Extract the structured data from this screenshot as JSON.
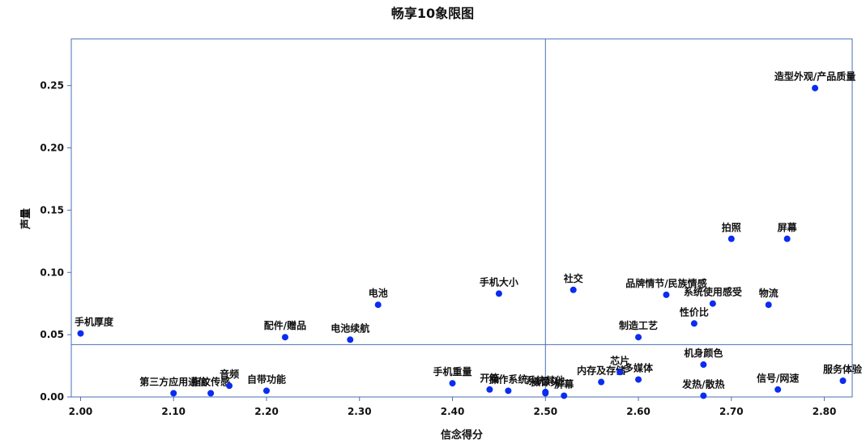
{
  "chart_data": {
    "type": "scatter",
    "title": "畅享10象限图",
    "xlabel": "信念得分",
    "ylabel": "声量",
    "xlim": [
      1.99,
      2.83
    ],
    "ylim": [
      0.0,
      0.2875
    ],
    "xticks": [
      2.0,
      2.1,
      2.2,
      2.3,
      2.4,
      2.5,
      2.6,
      2.7,
      2.8
    ],
    "xtick_labels": [
      "2.00",
      "2.10",
      "2.20",
      "2.30",
      "2.40",
      "2.50",
      "2.60",
      "2.70",
      "2.80"
    ],
    "yticks": [
      0.0,
      0.05,
      0.1,
      0.15,
      0.2,
      0.25
    ],
    "ytick_labels": [
      "0.00",
      "0.05",
      "0.10",
      "0.15",
      "0.20",
      "0.25"
    ],
    "reference_lines": {
      "x": 2.5,
      "y": 0.042
    },
    "grid": false,
    "point_color": "#0a2cf0",
    "line_color": "#4a6fb5",
    "points": [
      {
        "label": "手机厚度",
        "x": 2.0,
        "y": 0.051
      },
      {
        "label": "第三方应用通信",
        "x": 2.1,
        "y": 0.003
      },
      {
        "label": "指纹传感",
        "x": 2.14,
        "y": 0.003
      },
      {
        "label": "音频",
        "x": 2.16,
        "y": 0.009
      },
      {
        "label": "自带功能",
        "x": 2.2,
        "y": 0.005
      },
      {
        "label": "配件/赠品",
        "x": 2.22,
        "y": 0.048
      },
      {
        "label": "电池续航",
        "x": 2.29,
        "y": 0.046
      },
      {
        "label": "电池",
        "x": 2.32,
        "y": 0.074
      },
      {
        "label": "手机重量",
        "x": 2.4,
        "y": 0.011
      },
      {
        "label": "开箱",
        "x": 2.44,
        "y": 0.006
      },
      {
        "label": "操作系统",
        "x": 2.46,
        "y": 0.005
      },
      {
        "label": "手机大小",
        "x": 2.45,
        "y": 0.083
      },
      {
        "label": "系统其他",
        "x": 2.5,
        "y": 0.004
      },
      {
        "label": "摄像头",
        "x": 2.5,
        "y": 0.003
      },
      {
        "label": "屏幕",
        "x": 2.52,
        "y": 0.001
      },
      {
        "label": "社交",
        "x": 2.53,
        "y": 0.086
      },
      {
        "label": "内存及存储",
        "x": 2.56,
        "y": 0.012
      },
      {
        "label": "芯片",
        "x": 2.58,
        "y": 0.02
      },
      {
        "label": "多媒体",
        "x": 2.6,
        "y": 0.014
      },
      {
        "label": "制造工艺",
        "x": 2.6,
        "y": 0.048
      },
      {
        "label": "品牌情节/民族情感",
        "x": 2.63,
        "y": 0.082
      },
      {
        "label": "性价比",
        "x": 2.66,
        "y": 0.059
      },
      {
        "label": "机身颜色",
        "x": 2.67,
        "y": 0.026
      },
      {
        "label": "发热/散热",
        "x": 2.67,
        "y": 0.001
      },
      {
        "label": "系统使用感受",
        "x": 2.68,
        "y": 0.075
      },
      {
        "label": "拍照",
        "x": 2.7,
        "y": 0.127
      },
      {
        "label": "物流",
        "x": 2.74,
        "y": 0.074
      },
      {
        "label": "信号/网速",
        "x": 2.75,
        "y": 0.006
      },
      {
        "label": "屏幕",
        "x": 2.76,
        "y": 0.127
      },
      {
        "label": "造型外观/产品质量",
        "x": 2.79,
        "y": 0.248
      },
      {
        "label": "服务体验",
        "x": 2.82,
        "y": 0.013
      }
    ]
  }
}
